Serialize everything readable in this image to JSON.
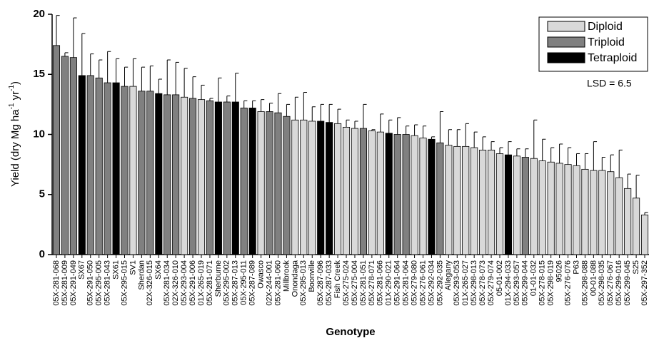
{
  "chart_data": {
    "type": "bar",
    "y_label": [
      "Yield (dry Mg ha",
      "-1",
      " yr",
      "-1",
      ")"
    ],
    "x_label": "Genotype",
    "annotation": "LSD = 6.5",
    "categories": [
      "05X-281-068",
      "05X-281-009",
      "05X-291-049",
      "SX67",
      "05X-291-050",
      "05X-295-005",
      "05X-281-043",
      "SX61",
      "05X-295-015",
      "SV1",
      "Sherdan",
      "02X-326-015",
      "SX64",
      "05X-281-034",
      "02X-326-010",
      "05X-293-004",
      "05X-291-006",
      "01X-265-019",
      "05X-281-071",
      "Sherburne",
      "05X-295-002",
      "05X-287-013",
      "05X-295-011",
      "05X-287-089",
      "Owasco",
      "02X-244-001",
      "05X-281-060",
      "Millbrook",
      "Onondaga",
      "05X-295-013",
      "Boonville",
      "05X-287-096",
      "05X-287-033",
      "Fish Creek",
      "05X-275-024",
      "05X-275-004",
      "05X-281-051",
      "05X-278-071",
      "05X-281-066",
      "01X-290-021",
      "05X-291-064",
      "05X-281-064",
      "05X-279-080",
      "05X-276-061",
      "05X-292-034",
      "05X-292-035",
      "Allegany",
      "05X-293-053",
      "01X-265-027",
      "05X-298-013",
      "05X-278-073",
      "05X-279-074",
      "05-01-002",
      "01X-294-033",
      "05X-293-057",
      "05X-299-044",
      "01-01-032",
      "05X-278-015",
      "05X-298-019",
      "95026",
      "05X-276-076",
      "P63",
      "05X-298-088",
      "00-01-088",
      "05X-298-035",
      "05X-276-067",
      "05X-299-016",
      "05X-299-045",
      "S25",
      "05X-297-352"
    ],
    "series": [
      {
        "name": "Diploid",
        "color": "#d9d9d9",
        "values": [
          null,
          null,
          null,
          null,
          null,
          null,
          null,
          null,
          null,
          14.0,
          null,
          null,
          null,
          null,
          null,
          13.1,
          null,
          12.9,
          null,
          null,
          null,
          null,
          null,
          null,
          11.9,
          null,
          null,
          null,
          11.2,
          11.2,
          11.1,
          null,
          null,
          10.9,
          10.6,
          10.5,
          null,
          10.3,
          10.2,
          null,
          null,
          null,
          9.9,
          9.7,
          null,
          null,
          9.1,
          9.0,
          9.0,
          8.9,
          8.7,
          8.7,
          8.4,
          null,
          8.2,
          null,
          8.0,
          7.8,
          7.7,
          7.6,
          7.5,
          7.4,
          7.1,
          7.0,
          7.0,
          6.9,
          6.4,
          5.5,
          4.7,
          3.3
        ],
        "errors": [
          null,
          null,
          null,
          null,
          null,
          null,
          null,
          null,
          null,
          2.3,
          null,
          null,
          null,
          null,
          null,
          2.4,
          null,
          1.2,
          null,
          null,
          null,
          null,
          null,
          null,
          1.0,
          null,
          null,
          null,
          1.9,
          2.3,
          1.2,
          null,
          null,
          1.2,
          0.6,
          0.6,
          null,
          0.1,
          1.5,
          null,
          null,
          null,
          0.9,
          1.0,
          null,
          null,
          1.3,
          1.4,
          1.9,
          1.3,
          1.1,
          0.7,
          0.5,
          null,
          0.6,
          null,
          3.2,
          1.8,
          1.2,
          1.6,
          1.4,
          1.0,
          1.3,
          2.4,
          1.1,
          1.4,
          2.3,
          1.2,
          1.9,
          0.2
        ]
      },
      {
        "name": "Triploid",
        "color": "#808080",
        "values": [
          17.4,
          16.5,
          16.4,
          null,
          14.9,
          14.7,
          14.3,
          null,
          14.0,
          null,
          13.6,
          13.6,
          null,
          13.3,
          13.3,
          null,
          13.0,
          null,
          12.8,
          null,
          12.7,
          null,
          12.2,
          null,
          null,
          11.9,
          11.8,
          11.5,
          null,
          null,
          null,
          null,
          null,
          null,
          null,
          null,
          10.5,
          null,
          null,
          null,
          10.0,
          10.0,
          null,
          null,
          null,
          9.3,
          null,
          null,
          null,
          null,
          null,
          null,
          null,
          null,
          null,
          8.1,
          null,
          null,
          null,
          null,
          null,
          null,
          null,
          null,
          null,
          null,
          null,
          null,
          null,
          null
        ],
        "errors": [
          2.5,
          0.3,
          3.3,
          null,
          1.8,
          1.5,
          2.6,
          null,
          1.6,
          null,
          2.0,
          2.1,
          null,
          2.9,
          2.7,
          null,
          1.8,
          null,
          0.2,
          null,
          0.5,
          null,
          0.6,
          null,
          null,
          0.7,
          1.6,
          1.0,
          null,
          null,
          null,
          null,
          null,
          null,
          null,
          null,
          2.0,
          null,
          null,
          null,
          1.4,
          0.7,
          null,
          null,
          null,
          2.6,
          null,
          null,
          null,
          null,
          null,
          null,
          null,
          null,
          null,
          0.7,
          null,
          null,
          null,
          null,
          null,
          null,
          null,
          null,
          null,
          null,
          null,
          null,
          null,
          null
        ]
      },
      {
        "name": "Tetraploid",
        "color": "#000000",
        "values": [
          null,
          null,
          null,
          14.9,
          null,
          null,
          null,
          14.3,
          null,
          null,
          null,
          null,
          13.4,
          null,
          null,
          null,
          null,
          null,
          null,
          12.7,
          null,
          12.7,
          null,
          12.2,
          null,
          null,
          null,
          null,
          null,
          null,
          null,
          11.1,
          11.0,
          null,
          null,
          null,
          null,
          null,
          null,
          10.1,
          null,
          null,
          null,
          null,
          9.6,
          null,
          null,
          null,
          null,
          null,
          null,
          null,
          null,
          8.3,
          null,
          null,
          null,
          null,
          null,
          null,
          null,
          null,
          null,
          null,
          null,
          null,
          null,
          null,
          null,
          null
        ],
        "errors": [
          null,
          null,
          null,
          3.5,
          null,
          null,
          null,
          2.0,
          null,
          null,
          null,
          null,
          1.2,
          null,
          null,
          null,
          null,
          null,
          null,
          2.0,
          null,
          2.4,
          null,
          0.6,
          null,
          null,
          null,
          null,
          null,
          null,
          null,
          1.4,
          1.5,
          null,
          null,
          null,
          null,
          null,
          null,
          1.1,
          null,
          null,
          null,
          null,
          0.2,
          null,
          null,
          null,
          null,
          null,
          null,
          null,
          null,
          1.1,
          null,
          null,
          null,
          null,
          null,
          null,
          null,
          null,
          null,
          null,
          null,
          null,
          null,
          null,
          null,
          null
        ]
      }
    ],
    "ylim": [
      0,
      20
    ],
    "yticks": [
      0,
      5,
      10,
      15,
      20
    ],
    "legend_position": "upper right"
  }
}
